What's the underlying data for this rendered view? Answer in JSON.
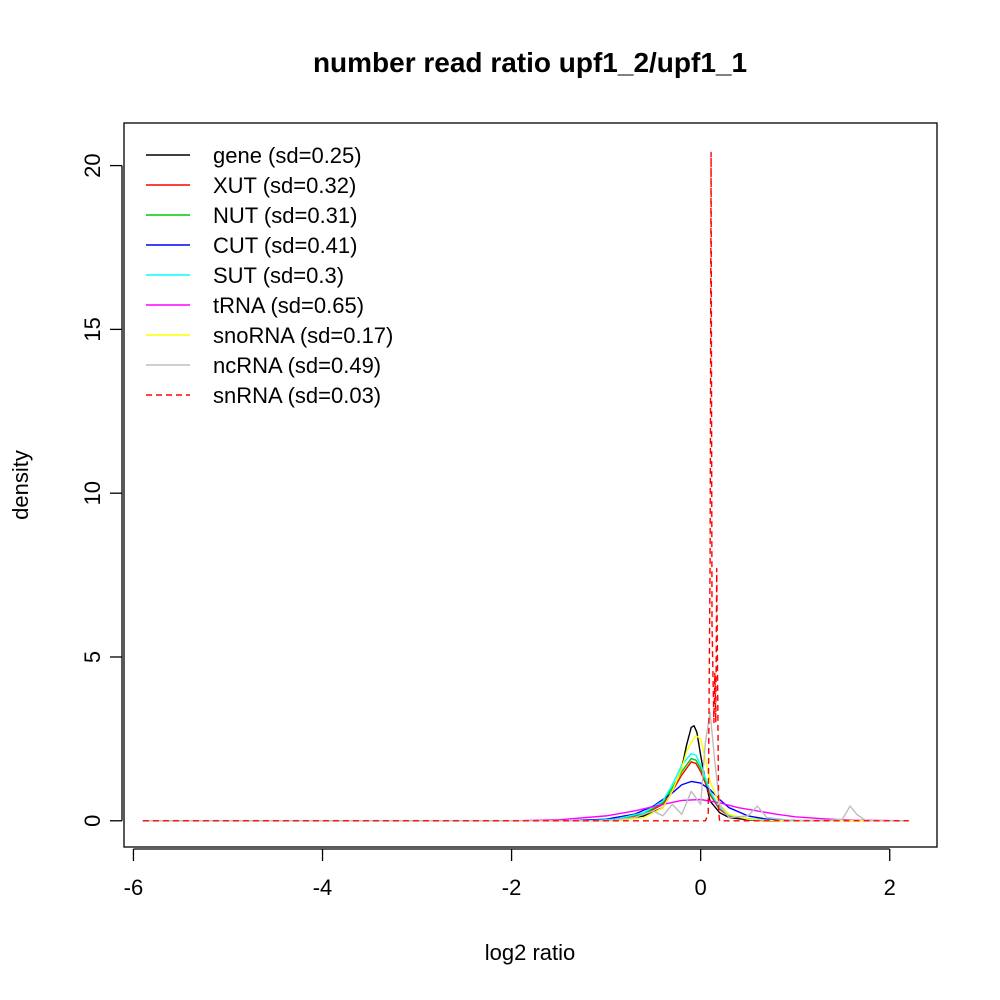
{
  "chart_data": {
    "type": "line",
    "title": "number read ratio upf1_2/upf1_1",
    "xlabel": "log2 ratio",
    "ylabel": "density",
    "xlim": [
      -6.1,
      2.5
    ],
    "ylim": [
      -0.8,
      21.3
    ],
    "xticks": [
      -6,
      -4,
      -2,
      0,
      2
    ],
    "yticks": [
      0,
      5,
      10,
      15,
      20
    ],
    "legend_position": "top-left",
    "series": [
      {
        "name": "gene (sd=0.25)",
        "color": "#000000",
        "dash": false,
        "x": [
          -5.9,
          -1.2,
          -0.8,
          -0.6,
          -0.4,
          -0.3,
          -0.2,
          -0.15,
          -0.1,
          -0.07,
          -0.04,
          0.0,
          0.05,
          0.1,
          0.2,
          0.3,
          0.5,
          0.7,
          2.2
        ],
        "y": [
          0,
          0,
          0.05,
          0.15,
          0.4,
          0.9,
          1.6,
          2.3,
          2.85,
          2.9,
          2.7,
          2.0,
          1.2,
          0.6,
          0.25,
          0.1,
          0.03,
          0,
          0
        ]
      },
      {
        "name": "XUT (sd=0.32)",
        "color": "#ff0000",
        "dash": false,
        "x": [
          -5.9,
          -1.3,
          -0.9,
          -0.6,
          -0.4,
          -0.3,
          -0.2,
          -0.1,
          -0.05,
          0.0,
          0.1,
          0.2,
          0.3,
          0.5,
          0.7,
          0.9,
          2.2
        ],
        "y": [
          0,
          0,
          0.05,
          0.2,
          0.5,
          0.9,
          1.4,
          1.8,
          1.75,
          1.5,
          0.8,
          0.35,
          0.15,
          0.05,
          0.02,
          0,
          0
        ]
      },
      {
        "name": "NUT (sd=0.31)",
        "color": "#00cc00",
        "dash": false,
        "x": [
          -5.9,
          -1.3,
          -0.9,
          -0.6,
          -0.4,
          -0.3,
          -0.2,
          -0.1,
          -0.05,
          0.0,
          0.1,
          0.2,
          0.3,
          0.5,
          0.7,
          0.9,
          2.2
        ],
        "y": [
          0,
          0,
          0.05,
          0.22,
          0.55,
          1.0,
          1.5,
          1.9,
          1.85,
          1.6,
          0.85,
          0.4,
          0.18,
          0.06,
          0.02,
          0,
          0
        ]
      },
      {
        "name": "CUT (sd=0.41)",
        "color": "#0000ff",
        "dash": false,
        "x": [
          -5.9,
          -1.4,
          -1.0,
          -0.7,
          -0.5,
          -0.3,
          -0.2,
          -0.1,
          0.0,
          0.1,
          0.2,
          0.3,
          0.5,
          0.7,
          1.0,
          2.2
        ],
        "y": [
          0,
          0,
          0.05,
          0.2,
          0.45,
          0.85,
          1.1,
          1.2,
          1.15,
          0.95,
          0.65,
          0.4,
          0.15,
          0.05,
          0.01,
          0
        ]
      },
      {
        "name": "SUT (sd=0.3)",
        "color": "#00ffff",
        "dash": false,
        "x": [
          -5.9,
          -1.2,
          -0.9,
          -0.6,
          -0.4,
          -0.3,
          -0.2,
          -0.1,
          -0.05,
          0.0,
          0.1,
          0.2,
          0.3,
          0.5,
          0.7,
          0.9,
          2.2
        ],
        "y": [
          0,
          0,
          0.05,
          0.25,
          0.6,
          1.1,
          1.7,
          2.05,
          2.0,
          1.7,
          0.9,
          0.4,
          0.18,
          0.06,
          0.02,
          0,
          0
        ]
      },
      {
        "name": "tRNA (sd=0.65)",
        "color": "#ff00ff",
        "dash": false,
        "x": [
          -5.9,
          -2.0,
          -1.5,
          -1.0,
          -0.7,
          -0.4,
          -0.2,
          0.0,
          0.2,
          0.4,
          0.6,
          0.8,
          1.0,
          1.3,
          1.6,
          2.2
        ],
        "y": [
          0,
          0,
          0.03,
          0.15,
          0.3,
          0.5,
          0.62,
          0.65,
          0.55,
          0.4,
          0.3,
          0.2,
          0.12,
          0.06,
          0.02,
          0
        ]
      },
      {
        "name": "snoRNA (sd=0.17)",
        "color": "#ffff00",
        "dash": false,
        "x": [
          -5.9,
          -0.9,
          -0.6,
          -0.4,
          -0.3,
          -0.2,
          -0.15,
          -0.1,
          -0.05,
          0.0,
          0.05,
          0.1,
          0.2,
          0.3,
          0.5,
          0.7,
          2.2
        ],
        "y": [
          0,
          0,
          0.1,
          0.4,
          0.9,
          1.6,
          2.1,
          2.4,
          2.6,
          2.5,
          1.9,
          1.2,
          0.5,
          0.2,
          0.05,
          0.01,
          0
        ]
      },
      {
        "name": "ncRNA (sd=0.49)",
        "color": "#bebebe",
        "dash": false,
        "x": [
          -5.9,
          -1.0,
          -0.7,
          -0.5,
          -0.4,
          -0.3,
          -0.2,
          -0.1,
          0.0,
          0.05,
          0.1,
          0.15,
          0.2,
          0.3,
          0.5,
          0.6,
          0.7,
          1.0,
          1.3,
          1.5,
          1.58,
          1.65,
          1.75,
          2.2
        ],
        "y": [
          0,
          0,
          0.1,
          0.3,
          0.15,
          0.5,
          0.2,
          0.9,
          0.5,
          2.4,
          3.3,
          1.8,
          0.5,
          0.1,
          0.15,
          0.45,
          0.1,
          0,
          0,
          0.05,
          0.45,
          0.2,
          0,
          0
        ]
      },
      {
        "name": "snRNA (sd=0.03)",
        "color": "#ff0000",
        "dash": true,
        "x": [
          -5.9,
          0.0,
          0.05,
          0.08,
          0.1,
          0.11,
          0.12,
          0.14,
          0.15,
          0.16,
          0.17,
          0.18,
          0.19,
          0.2,
          2.2
        ],
        "y": [
          0,
          0,
          0,
          0.2,
          8.0,
          20.4,
          6.0,
          3.0,
          4.5,
          3.0,
          7.7,
          4.0,
          0.3,
          0,
          0
        ]
      }
    ]
  }
}
